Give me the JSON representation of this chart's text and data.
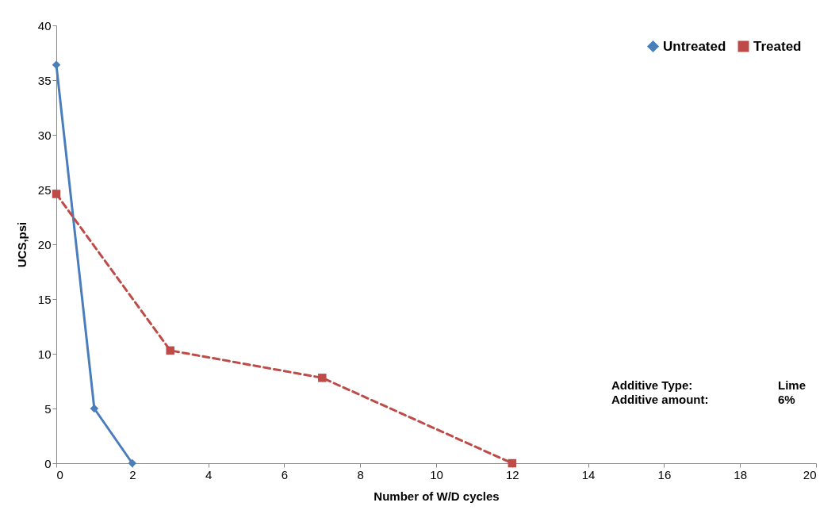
{
  "chart_data": {
    "type": "line",
    "xlabel": "Number of W/D cycles",
    "ylabel": "UCS,psi",
    "xlim": [
      0,
      20
    ],
    "xticks": [
      0,
      2,
      4,
      6,
      8,
      10,
      12,
      14,
      16,
      18,
      20
    ],
    "ylim": [
      0,
      40
    ],
    "yticks": [
      0,
      5,
      10,
      15,
      20,
      25,
      30,
      35,
      40
    ],
    "grid": false,
    "legend": "top right",
    "series": [
      {
        "name": "Untreated",
        "color": "#4a7ebb",
        "x": [
          0,
          1,
          2
        ],
        "values": [
          36.4,
          5,
          0
        ],
        "marker": "diamond",
        "line_style": "solid"
      },
      {
        "name": "Treated",
        "color": "#be4b48",
        "x": [
          0,
          3,
          7,
          12
        ],
        "values": [
          24.6,
          10.3,
          7.8,
          0
        ],
        "marker": "square",
        "line_style": "dashed"
      }
    ],
    "annotations": [
      "Additive Type:",
      "Lime",
      "Additive amount:",
      "6%"
    ]
  }
}
